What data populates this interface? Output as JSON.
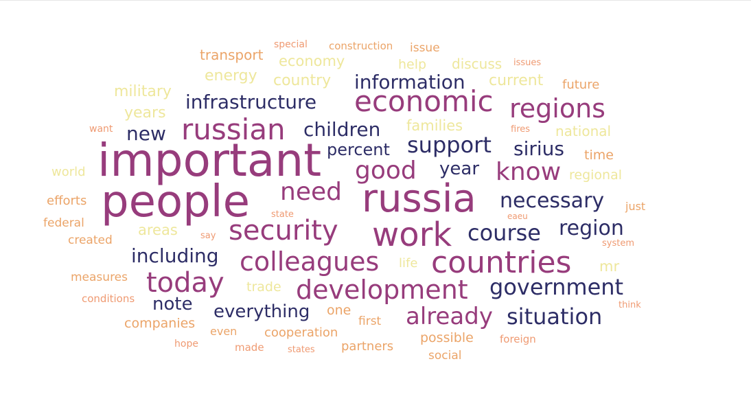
{
  "palette": {
    "navy": "#2d2d66",
    "plum": "#973c7c",
    "salmon": "#ef9a72",
    "orange": "#eba468",
    "yellow": "#eee79c"
  },
  "chart_data": {
    "type": "wordcloud",
    "words": [
      {
        "text": "important",
        "weight": 66,
        "color": "plum"
      },
      {
        "text": "people",
        "weight": 64,
        "color": "plum"
      },
      {
        "text": "russia",
        "weight": 56,
        "color": "plum"
      },
      {
        "text": "work",
        "weight": 48,
        "color": "plum"
      },
      {
        "text": "countries",
        "weight": 44,
        "color": "plum"
      },
      {
        "text": "economic",
        "weight": 42,
        "color": "plum"
      },
      {
        "text": "russian",
        "weight": 42,
        "color": "plum"
      },
      {
        "text": "security",
        "weight": 40,
        "color": "plum"
      },
      {
        "text": "today",
        "weight": 40,
        "color": "plum"
      },
      {
        "text": "development",
        "weight": 38,
        "color": "plum"
      },
      {
        "text": "colleagues",
        "weight": 38,
        "color": "plum"
      },
      {
        "text": "regions",
        "weight": 38,
        "color": "plum"
      },
      {
        "text": "need",
        "weight": 36,
        "color": "plum"
      },
      {
        "text": "good",
        "weight": 36,
        "color": "plum"
      },
      {
        "text": "know",
        "weight": 36,
        "color": "plum"
      },
      {
        "text": "already",
        "weight": 34,
        "color": "plum"
      },
      {
        "text": "course",
        "weight": 32,
        "color": "navy"
      },
      {
        "text": "situation",
        "weight": 32,
        "color": "navy"
      },
      {
        "text": "government",
        "weight": 32,
        "color": "navy"
      },
      {
        "text": "support",
        "weight": 32,
        "color": "navy"
      },
      {
        "text": "necessary",
        "weight": 30,
        "color": "navy"
      },
      {
        "text": "region",
        "weight": 30,
        "color": "navy"
      },
      {
        "text": "infrastructure",
        "weight": 28,
        "color": "navy"
      },
      {
        "text": "children",
        "weight": 28,
        "color": "navy"
      },
      {
        "text": "information",
        "weight": 28,
        "color": "navy"
      },
      {
        "text": "including",
        "weight": 28,
        "color": "navy"
      },
      {
        "text": "new",
        "weight": 28,
        "color": "navy"
      },
      {
        "text": "sirius",
        "weight": 28,
        "color": "navy"
      },
      {
        "text": "note",
        "weight": 26,
        "color": "navy"
      },
      {
        "text": "everything",
        "weight": 26,
        "color": "navy"
      },
      {
        "text": "year",
        "weight": 26,
        "color": "navy"
      },
      {
        "text": "percent",
        "weight": 24,
        "color": "navy"
      },
      {
        "text": "military",
        "weight": 22,
        "color": "yellow"
      },
      {
        "text": "years",
        "weight": 22,
        "color": "yellow"
      },
      {
        "text": "energy",
        "weight": 22,
        "color": "yellow"
      },
      {
        "text": "country",
        "weight": 22,
        "color": "yellow"
      },
      {
        "text": "economy",
        "weight": 21,
        "color": "yellow"
      },
      {
        "text": "current",
        "weight": 22,
        "color": "yellow"
      },
      {
        "text": "families",
        "weight": 21,
        "color": "yellow"
      },
      {
        "text": "areas",
        "weight": 21,
        "color": "yellow"
      },
      {
        "text": "mr",
        "weight": 21,
        "color": "yellow"
      },
      {
        "text": "national",
        "weight": 20,
        "color": "yellow"
      },
      {
        "text": "discuss",
        "weight": 20,
        "color": "yellow"
      },
      {
        "text": "help",
        "weight": 19,
        "color": "yellow"
      },
      {
        "text": "regional",
        "weight": 19,
        "color": "yellow"
      },
      {
        "text": "trade",
        "weight": 19,
        "color": "yellow"
      },
      {
        "text": "world",
        "weight": 18,
        "color": "yellow"
      },
      {
        "text": "life",
        "weight": 18,
        "color": "yellow"
      },
      {
        "text": "transport",
        "weight": 20,
        "color": "orange"
      },
      {
        "text": "possible",
        "weight": 19,
        "color": "orange"
      },
      {
        "text": "companies",
        "weight": 19,
        "color": "orange"
      },
      {
        "text": "cooperation",
        "weight": 18,
        "color": "orange"
      },
      {
        "text": "time",
        "weight": 19,
        "color": "orange"
      },
      {
        "text": "one",
        "weight": 19,
        "color": "orange"
      },
      {
        "text": "partners",
        "weight": 18,
        "color": "orange"
      },
      {
        "text": "future",
        "weight": 18,
        "color": "orange"
      },
      {
        "text": "issue",
        "weight": 17,
        "color": "orange"
      },
      {
        "text": "federal",
        "weight": 17,
        "color": "orange"
      },
      {
        "text": "first",
        "weight": 17,
        "color": "orange"
      },
      {
        "text": "created",
        "weight": 17,
        "color": "orange"
      },
      {
        "text": "measures",
        "weight": 17,
        "color": "orange"
      },
      {
        "text": "efforts",
        "weight": 18,
        "color": "orange"
      },
      {
        "text": "social",
        "weight": 17,
        "color": "orange"
      },
      {
        "text": "just",
        "weight": 16,
        "color": "orange"
      },
      {
        "text": "construction",
        "weight": 15,
        "color": "orange"
      },
      {
        "text": "even",
        "weight": 16,
        "color": "orange"
      },
      {
        "text": "foreign",
        "weight": 15,
        "color": "salmon"
      },
      {
        "text": "conditions",
        "weight": 15,
        "color": "salmon"
      },
      {
        "text": "made",
        "weight": 15,
        "color": "salmon"
      },
      {
        "text": "hope",
        "weight": 14,
        "color": "salmon"
      },
      {
        "text": "special",
        "weight": 14,
        "color": "salmon"
      },
      {
        "text": "issues",
        "weight": 13,
        "color": "salmon"
      },
      {
        "text": "want",
        "weight": 14,
        "color": "salmon"
      },
      {
        "text": "fires",
        "weight": 13,
        "color": "salmon"
      },
      {
        "text": "state",
        "weight": 13,
        "color": "salmon"
      },
      {
        "text": "say",
        "weight": 13,
        "color": "salmon"
      },
      {
        "text": "eaeu",
        "weight": 12,
        "color": "salmon"
      },
      {
        "text": "system",
        "weight": 13,
        "color": "salmon"
      },
      {
        "text": "think",
        "weight": 13,
        "color": "salmon"
      },
      {
        "text": "states",
        "weight": 13,
        "color": "salmon"
      }
    ]
  }
}
